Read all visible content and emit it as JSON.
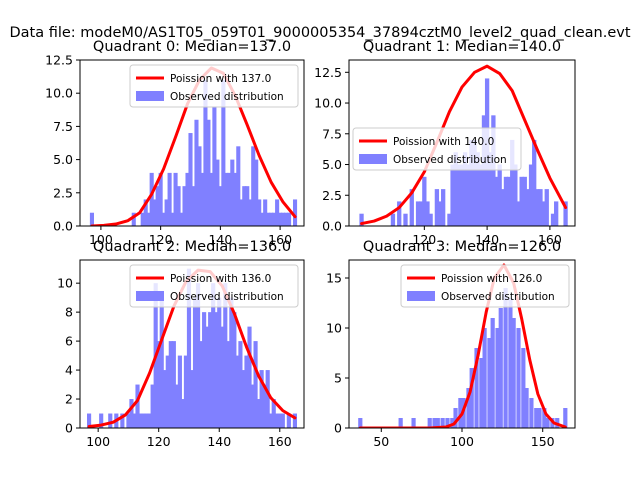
{
  "figure": {
    "suptitle": "Data file: modeM0/AS1T05_059T01_9000005354_37894cztM0_level2_quad_clean.evt"
  },
  "colors": {
    "poisson": "#ff0000",
    "hist": "#8080ff",
    "axis": "#000000"
  },
  "chart_data": [
    {
      "type": "bar",
      "title": "Quadrant 0: Median=137.0",
      "xlim": [
        93,
        168
      ],
      "ylim": [
        0,
        12.5
      ],
      "xticks": [
        100,
        120,
        140,
        160
      ],
      "yticks": [
        0.0,
        2.5,
        5.0,
        7.5,
        10.0,
        12.5
      ],
      "legend": {
        "position": "top-right",
        "entries": [
          "Poission with 137.0",
          "Observed distribution"
        ]
      },
      "histogram": {
        "name": "Observed distribution",
        "bin_width": 1.37,
        "x": [
          97,
          111,
          114,
          115,
          116,
          117,
          118,
          119,
          120,
          121,
          122,
          123,
          124,
          125,
          126,
          127,
          128,
          129,
          130,
          131,
          132,
          133,
          134,
          135,
          136,
          137,
          138,
          139,
          140,
          141,
          142,
          143,
          144,
          145,
          146,
          147,
          148,
          149,
          150,
          151,
          152,
          153,
          154,
          155,
          156,
          157,
          158,
          159,
          160,
          161,
          162,
          163,
          165
        ],
        "values": [
          1,
          1,
          1,
          2,
          1,
          4,
          2,
          3,
          4,
          1,
          2,
          4,
          1,
          4,
          3,
          1,
          3,
          4,
          7,
          3,
          8,
          6,
          4,
          11,
          8,
          4,
          9,
          5,
          3,
          11,
          4,
          4,
          5,
          4,
          6,
          2,
          3,
          3,
          2,
          6,
          5,
          2,
          1,
          2,
          1,
          1,
          1,
          2,
          1,
          1,
          1,
          1,
          2
        ]
      },
      "poisson": {
        "name": "Poission with 137.0",
        "x": [
          97,
          101,
          105,
          109,
          113,
          117,
          121,
          125,
          129,
          133,
          137,
          141,
          145,
          149,
          153,
          157,
          161,
          165
        ],
        "y": [
          0.0,
          0.05,
          0.15,
          0.4,
          1.0,
          2.4,
          4.3,
          6.7,
          9.2,
          11.0,
          11.9,
          11.5,
          9.8,
          7.6,
          5.3,
          3.3,
          1.8,
          0.7
        ]
      }
    },
    {
      "type": "bar",
      "title": "Quadrant 1: Median=140.0",
      "xlim": [
        96,
        168
      ],
      "ylim": [
        0,
        13.5
      ],
      "xticks": [
        120,
        140,
        160
      ],
      "yticks": [
        0.0,
        2.5,
        5.0,
        7.5,
        10.0,
        12.5
      ],
      "legend": {
        "position": "center-left",
        "entries": [
          "Poission with 140.0",
          "Observed distribution"
        ]
      },
      "histogram": {
        "name": "Observed distribution",
        "bin_width": 1.37,
        "x": [
          100,
          110,
          112,
          114,
          116,
          118,
          119,
          120,
          121,
          122,
          124,
          125,
          126,
          128,
          129,
          130,
          131,
          132,
          133,
          134,
          135,
          136,
          137,
          138,
          139,
          140,
          141,
          142,
          143,
          144,
          145,
          146,
          147,
          148,
          149,
          150,
          151,
          152,
          153,
          154,
          155,
          156,
          157,
          158,
          159,
          161,
          162,
          165
        ],
        "values": [
          1,
          1,
          2,
          1,
          3,
          2,
          2,
          4,
          2,
          1,
          3,
          2,
          3,
          1,
          5,
          6,
          5,
          5,
          6,
          5,
          7,
          7,
          6,
          5,
          9,
          12,
          6,
          9,
          4,
          5,
          3,
          4,
          4,
          7,
          5,
          2,
          4,
          4,
          3,
          5,
          7,
          3,
          3,
          2,
          3,
          1,
          2,
          2
        ]
      },
      "poisson": {
        "name": "Poission with 140.0",
        "x": [
          100,
          104,
          108,
          112,
          116,
          120,
          124,
          128,
          132,
          136,
          140,
          144,
          148,
          152,
          156,
          160,
          165
        ],
        "y": [
          0.2,
          0.4,
          0.8,
          1.5,
          2.7,
          4.4,
          6.8,
          9.3,
          11.3,
          12.5,
          13.0,
          12.4,
          11.0,
          8.6,
          6.2,
          3.9,
          1.5
        ]
      }
    },
    {
      "type": "bar",
      "title": "Quadrant 2: Median=136.0",
      "xlim": [
        94,
        168
      ],
      "ylim": [
        0,
        11.6
      ],
      "xticks": [
        100,
        120,
        140,
        160
      ],
      "yticks": [
        0,
        2,
        4,
        6,
        8,
        10
      ],
      "legend": {
        "position": "top-right",
        "entries": [
          "Poission with 136.0",
          "Observed distribution"
        ]
      },
      "histogram": {
        "name": "Observed distribution",
        "bin_width": 1.37,
        "x": [
          97,
          101,
          104,
          106,
          108,
          110,
          111,
          112,
          113,
          114,
          115,
          116,
          117,
          118,
          119,
          120,
          121,
          122,
          123,
          124,
          125,
          126,
          127,
          128,
          129,
          130,
          131,
          132,
          133,
          134,
          135,
          136,
          137,
          138,
          139,
          140,
          141,
          142,
          143,
          144,
          145,
          146,
          147,
          148,
          149,
          150,
          151,
          152,
          153,
          154,
          155,
          156,
          157,
          158,
          159,
          160,
          161,
          163,
          165
        ],
        "values": [
          1,
          1,
          1,
          1,
          1,
          1,
          2,
          1,
          3,
          1,
          1,
          1,
          1,
          3,
          10,
          6,
          9,
          4,
          5,
          6,
          6,
          3,
          5,
          2,
          5,
          11,
          4,
          9,
          10,
          6,
          8,
          7,
          8,
          10,
          8,
          9,
          7,
          10,
          6,
          9,
          8,
          5,
          6,
          4,
          5,
          7,
          3,
          6,
          2,
          4,
          3,
          4,
          1,
          2,
          1,
          1,
          1,
          1,
          1
        ]
      },
      "poisson": {
        "name": "Poission with 136.0",
        "x": [
          97,
          101,
          105,
          109,
          113,
          117,
          121,
          125,
          129,
          133,
          137,
          141,
          145,
          149,
          153,
          157,
          161,
          165
        ],
        "y": [
          0.1,
          0.2,
          0.4,
          0.9,
          1.9,
          3.8,
          6.1,
          8.4,
          10.1,
          10.9,
          10.8,
          9.8,
          7.9,
          5.6,
          3.6,
          2.1,
          1.2,
          0.7
        ]
      }
    },
    {
      "type": "bar",
      "title": "Quadrant 3: Median=126.0",
      "xlim": [
        30,
        170
      ],
      "ylim": [
        0,
        16.8
      ],
      "xticks": [
        50,
        100,
        150
      ],
      "yticks": [
        0,
        5,
        10,
        15
      ],
      "legend": {
        "position": "top-right",
        "entries": [
          "Poission with 126.0",
          "Observed distribution"
        ]
      },
      "histogram": {
        "name": "Observed distribution",
        "bin_width": 2.6,
        "x": [
          37,
          62,
          70,
          80,
          83,
          85,
          88,
          91,
          94,
          96,
          99,
          101,
          104,
          106,
          109,
          112,
          114,
          117,
          119,
          122,
          124,
          127,
          130,
          132,
          135,
          138,
          140,
          143,
          146,
          148,
          151,
          153,
          156,
          159,
          164
        ],
        "values": [
          1,
          1,
          1,
          1,
          1,
          1,
          1,
          1,
          1,
          2,
          3,
          3,
          4,
          6,
          8,
          7,
          10,
          9,
          11,
          10,
          12,
          14,
          13,
          11,
          10,
          8,
          4,
          3,
          2,
          2,
          2,
          1,
          1,
          1,
          2
        ]
      },
      "poisson": {
        "name": "Poission with 126.0",
        "x": [
          37,
          60,
          80,
          90,
          95,
          100,
          105,
          110,
          115,
          120,
          126,
          132,
          137,
          142,
          147,
          152,
          157,
          164
        ],
        "y": [
          0,
          0,
          0,
          0.1,
          0.4,
          1.4,
          3.6,
          7.3,
          11.6,
          15.0,
          16.3,
          14.5,
          10.9,
          6.8,
          3.4,
          1.4,
          0.5,
          0.1
        ]
      }
    }
  ]
}
